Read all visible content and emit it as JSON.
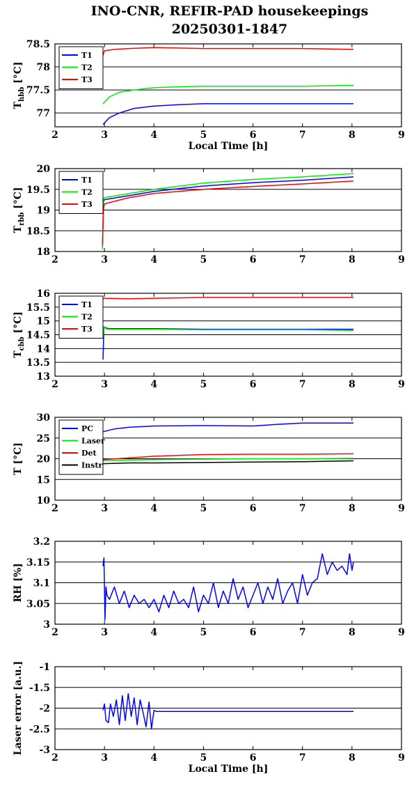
{
  "title_line1": "INO-CNR, REFIR-PAD housekeepings",
  "title_line2": "20250301-1847",
  "chart_data": [
    {
      "type": "line",
      "ylabel": "T",
      "ylabel_sub": "hbb",
      "ylabel_unit": "[°C]",
      "xlabel": "Local Time [h]",
      "xlim": [
        2,
        9
      ],
      "ylim": [
        76.7,
        78.5
      ],
      "xticks": [
        2,
        3,
        4,
        5,
        6,
        7,
        8,
        9
      ],
      "yticks": [
        77,
        77.5,
        78,
        78.5
      ],
      "grid": "horizontal",
      "legend": "top-left",
      "series": [
        {
          "name": "T1",
          "color": "#0000ff",
          "x": [
            2.97,
            3.1,
            3.3,
            3.6,
            4.0,
            4.5,
            5.0,
            6.0,
            7.0,
            8.03
          ],
          "y": [
            76.75,
            76.9,
            77.0,
            77.1,
            77.15,
            77.18,
            77.2,
            77.2,
            77.2,
            77.2
          ]
        },
        {
          "name": "T2",
          "color": "#00ee00",
          "x": [
            2.97,
            3.1,
            3.3,
            3.6,
            4.0,
            4.5,
            5.0,
            6.0,
            7.0,
            8.03
          ],
          "y": [
            77.2,
            77.35,
            77.45,
            77.5,
            77.55,
            77.57,
            77.58,
            77.58,
            77.58,
            77.6
          ]
        },
        {
          "name": "T3",
          "color": "#ff0000",
          "x": [
            2.97,
            3.0,
            3.2,
            3.5,
            4.0,
            5.0,
            6.0,
            7.0,
            8.03
          ],
          "y": [
            78.25,
            78.35,
            78.38,
            78.4,
            78.42,
            78.4,
            78.4,
            78.4,
            78.38
          ]
        }
      ]
    },
    {
      "type": "line",
      "ylabel": "T",
      "ylabel_sub": "rbb",
      "ylabel_unit": "[°C]",
      "xlabel": "",
      "xlim": [
        2,
        9
      ],
      "ylim": [
        18,
        20
      ],
      "xticks": [
        2,
        3,
        4,
        5,
        6,
        7,
        8,
        9
      ],
      "yticks": [
        18,
        18.5,
        19,
        19.5,
        20
      ],
      "grid": "horizontal",
      "legend": "top-left",
      "series": [
        {
          "name": "T1",
          "color": "#0000ff",
          "x": [
            2.96,
            2.98,
            3.0,
            3.5,
            4.0,
            5.0,
            6.0,
            7.0,
            8.03
          ],
          "y": [
            18.1,
            19.2,
            19.25,
            19.35,
            19.45,
            19.58,
            19.66,
            19.72,
            19.8
          ]
        },
        {
          "name": "T2",
          "color": "#00ee00",
          "x": [
            2.96,
            2.98,
            3.0,
            3.5,
            4.0,
            5.0,
            6.0,
            7.0,
            8.03
          ],
          "y": [
            18.05,
            19.25,
            19.3,
            19.4,
            19.5,
            19.65,
            19.74,
            19.8,
            19.88
          ]
        },
        {
          "name": "T3",
          "color": "#ff0000",
          "x": [
            2.96,
            2.98,
            3.0,
            3.5,
            4.0,
            5.0,
            6.0,
            7.0,
            8.03
          ],
          "y": [
            18.15,
            19.0,
            19.15,
            19.3,
            19.4,
            19.5,
            19.57,
            19.63,
            19.7
          ]
        }
      ]
    },
    {
      "type": "line",
      "ylabel": "T",
      "ylabel_sub": "cbb",
      "ylabel_unit": "[°C]",
      "xlabel": "",
      "xlim": [
        2,
        9
      ],
      "ylim": [
        13,
        16
      ],
      "xticks": [
        2,
        3,
        4,
        5,
        6,
        7,
        8,
        9
      ],
      "yticks": [
        13,
        13.5,
        14,
        14.5,
        15,
        15.5,
        16
      ],
      "grid": "horizontal",
      "legend": "top-left",
      "series": [
        {
          "name": "T1",
          "color": "#0000ff",
          "x": [
            2.97,
            2.99,
            3.02,
            3.1,
            4.0,
            5.0,
            6.0,
            7.0,
            8.03
          ],
          "y": [
            13.6,
            14.8,
            14.75,
            14.72,
            14.72,
            14.7,
            14.7,
            14.7,
            14.7
          ]
        },
        {
          "name": "T2",
          "color": "#00ee00",
          "x": [
            2.97,
            2.99,
            3.02,
            3.1,
            4.0,
            5.0,
            6.0,
            7.0,
            8.03
          ],
          "y": [
            14.4,
            14.8,
            14.72,
            14.7,
            14.7,
            14.68,
            14.68,
            14.68,
            14.66
          ]
        },
        {
          "name": "T3",
          "color": "#ff0000",
          "x": [
            2.97,
            3.0,
            3.5,
            4.0,
            5.0,
            6.0,
            7.0,
            8.03
          ],
          "y": [
            15.8,
            15.82,
            15.8,
            15.82,
            15.85,
            15.85,
            15.85,
            15.85
          ]
        }
      ]
    },
    {
      "type": "line",
      "ylabel": "T [°C]",
      "ylabel_sub": "",
      "ylabel_unit": "",
      "xlabel": "",
      "xlim": [
        2,
        9
      ],
      "ylim": [
        10,
        30
      ],
      "xticks": [
        2,
        3,
        4,
        5,
        6,
        7,
        8,
        9
      ],
      "yticks": [
        10,
        15,
        20,
        25,
        30
      ],
      "grid": "horizontal",
      "legend": "top-left",
      "series": [
        {
          "name": "PC",
          "color": "#0000ff",
          "x": [
            2.97,
            3.2,
            3.5,
            4.0,
            5.0,
            6.0,
            6.5,
            7.0,
            8.03
          ],
          "y": [
            26.5,
            27.2,
            27.6,
            27.9,
            28.0,
            27.9,
            28.3,
            28.6,
            28.6
          ]
        },
        {
          "name": "Laser",
          "color": "#00ee00",
          "x": [
            2.97,
            3.5,
            4.0,
            5.0,
            6.0,
            7.0,
            8.03
          ],
          "y": [
            19.5,
            19.7,
            19.8,
            19.9,
            20.0,
            20.0,
            20.1
          ]
        },
        {
          "name": "Det",
          "color": "#ff0000",
          "x": [
            2.97,
            3.5,
            4.0,
            5.0,
            6.0,
            7.0,
            8.03
          ],
          "y": [
            19.8,
            20.2,
            20.6,
            21.0,
            21.1,
            21.1,
            21.2
          ]
        },
        {
          "name": "Instr",
          "color": "#000000",
          "x": [
            2.97,
            3.5,
            4.0,
            5.0,
            6.0,
            7.0,
            8.03
          ],
          "y": [
            18.8,
            19.0,
            19.0,
            19.1,
            19.2,
            19.3,
            19.5
          ]
        }
      ]
    },
    {
      "type": "line",
      "ylabel": "RH [%]",
      "ylabel_sub": "",
      "ylabel_unit": "",
      "xlabel": "",
      "xlim": [
        2,
        9
      ],
      "ylim": [
        3,
        3.2
      ],
      "xticks": [
        2,
        3,
        4,
        5,
        6,
        7,
        8,
        9
      ],
      "yticks": [
        3,
        3.05,
        3.1,
        3.15,
        3.2
      ],
      "grid": "horizontal",
      "legend": "",
      "series": [
        {
          "name": "",
          "color": "#0000ff",
          "x": [
            2.97,
            2.99,
            3.01,
            3.03,
            3.05,
            3.1,
            3.2,
            3.3,
            3.4,
            3.5,
            3.6,
            3.7,
            3.8,
            3.9,
            4.0,
            4.1,
            4.2,
            4.3,
            4.4,
            4.5,
            4.6,
            4.7,
            4.8,
            4.9,
            5.0,
            5.1,
            5.2,
            5.3,
            5.4,
            5.5,
            5.6,
            5.7,
            5.8,
            5.9,
            6.0,
            6.1,
            6.2,
            6.3,
            6.4,
            6.5,
            6.6,
            6.7,
            6.8,
            6.9,
            7.0,
            7.1,
            7.2,
            7.3,
            7.4,
            7.5,
            7.6,
            7.7,
            7.8,
            7.9,
            7.95,
            8.0,
            8.03
          ],
          "y": [
            3.14,
            3.16,
            3.01,
            3.09,
            3.07,
            3.06,
            3.09,
            3.05,
            3.08,
            3.04,
            3.07,
            3.05,
            3.06,
            3.04,
            3.06,
            3.03,
            3.07,
            3.04,
            3.08,
            3.05,
            3.06,
            3.04,
            3.09,
            3.03,
            3.07,
            3.05,
            3.1,
            3.04,
            3.08,
            3.05,
            3.11,
            3.06,
            3.09,
            3.04,
            3.07,
            3.1,
            3.05,
            3.09,
            3.06,
            3.11,
            3.05,
            3.08,
            3.1,
            3.05,
            3.12,
            3.07,
            3.1,
            3.11,
            3.17,
            3.12,
            3.15,
            3.13,
            3.14,
            3.12,
            3.17,
            3.13,
            3.15
          ]
        }
      ]
    },
    {
      "type": "line",
      "ylabel": "Laser error [a.u.]",
      "ylabel_sub": "",
      "ylabel_unit": "",
      "xlabel": "Local Time [h]",
      "xlim": [
        2,
        9
      ],
      "ylim": [
        -3,
        -1
      ],
      "xticks": [
        2,
        3,
        4,
        5,
        6,
        7,
        8,
        9
      ],
      "yticks": [
        -3,
        -2.5,
        -2,
        -1.5,
        -1
      ],
      "grid": "horizontal",
      "legend": "",
      "series": [
        {
          "name": "",
          "color": "#0000ff",
          "x": [
            2.97,
            3.0,
            3.03,
            3.08,
            3.12,
            3.18,
            3.24,
            3.3,
            3.36,
            3.42,
            3.48,
            3.54,
            3.6,
            3.66,
            3.72,
            3.78,
            3.84,
            3.9,
            3.95,
            4.0,
            4.05,
            4.5,
            5.0,
            6.0,
            7.0,
            8.03
          ],
          "y": [
            -2.05,
            -1.9,
            -2.3,
            -2.35,
            -1.9,
            -2.2,
            -1.8,
            -2.4,
            -1.7,
            -2.3,
            -1.65,
            -2.2,
            -1.75,
            -2.4,
            -1.8,
            -2.1,
            -2.45,
            -1.85,
            -2.5,
            -2.05,
            -2.08,
            -2.08,
            -2.08,
            -2.08,
            -2.08,
            -2.08
          ]
        }
      ]
    }
  ]
}
